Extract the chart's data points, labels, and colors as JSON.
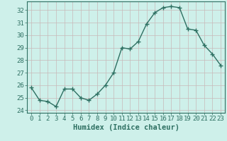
{
  "x": [
    0,
    1,
    2,
    3,
    4,
    5,
    6,
    7,
    8,
    9,
    10,
    11,
    12,
    13,
    14,
    15,
    16,
    17,
    18,
    19,
    20,
    21,
    22,
    23
  ],
  "y": [
    25.8,
    24.8,
    24.7,
    24.3,
    25.7,
    25.7,
    25.0,
    24.8,
    25.3,
    26.0,
    27.0,
    29.0,
    28.9,
    29.5,
    30.9,
    31.8,
    32.2,
    32.3,
    32.2,
    30.5,
    30.4,
    29.2,
    28.5,
    27.6
  ],
  "line_color": "#2e7062",
  "marker": "+",
  "marker_size": 4,
  "bg_color": "#cef0ea",
  "grid_color": "#c8b8b8",
  "xlabel": "Humidex (Indice chaleur)",
  "xlim": [
    -0.5,
    23.5
  ],
  "ylim": [
    23.8,
    32.7
  ],
  "yticks": [
    24,
    25,
    26,
    27,
    28,
    29,
    30,
    31,
    32
  ],
  "xticks": [
    0,
    1,
    2,
    3,
    4,
    5,
    6,
    7,
    8,
    9,
    10,
    11,
    12,
    13,
    14,
    15,
    16,
    17,
    18,
    19,
    20,
    21,
    22,
    23
  ],
  "tick_color": "#2e7062",
  "spine_color": "#2e7062",
  "xlabel_fontsize": 7.5,
  "tick_fontsize": 6.5,
  "linewidth": 1.0,
  "marker_color": "#2e7062"
}
